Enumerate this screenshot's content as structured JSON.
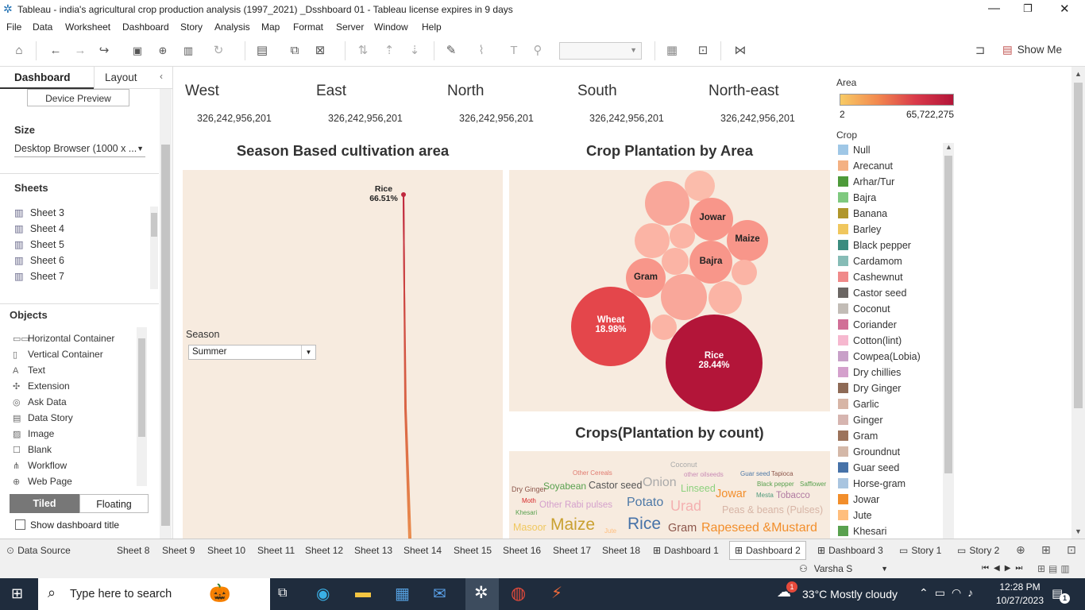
{
  "window": {
    "title": "Tableau - india's agricultural crop production analysis (1997_2021) _Dsshboard 01 - Tableau license expires in 9 days"
  },
  "menu": [
    "File",
    "Data",
    "Worksheet",
    "Dashboard",
    "Story",
    "Analysis",
    "Map",
    "Format",
    "Server",
    "Window",
    "Help"
  ],
  "toolbar": {
    "show_me": "Show Me"
  },
  "left_panel": {
    "tab_dashboard": "Dashboard",
    "tab_layout": "Layout",
    "device_preview": "Device Preview",
    "size_title": "Size",
    "size_value": "Desktop Browser (1000 x ...",
    "sheets_title": "Sheets",
    "sheets": [
      "Sheet 3",
      "Sheet 4",
      "Sheet 5",
      "Sheet 6",
      "Sheet 7"
    ],
    "objects_title": "Objects",
    "objects": [
      "Horizontal Container",
      "Vertical Container",
      "Text",
      "Extension",
      "Ask Data",
      "Data Story",
      "Image",
      "Blank",
      "Workflow",
      "Web Page"
    ],
    "tiled": "Tiled",
    "floating": "Floating",
    "show_title": "Show dashboard title"
  },
  "regions": [
    {
      "name": "West",
      "value": "326,242,956,201"
    },
    {
      "name": "East",
      "value": "326,242,956,201"
    },
    {
      "name": "North",
      "value": "326,242,956,201"
    },
    {
      "name": "South",
      "value": "326,242,956,201"
    },
    {
      "name": "North-east",
      "value": "326,242,956,201"
    }
  ],
  "season_chart": {
    "title": "Season Based cultivation area",
    "filter_label": "Season",
    "filter_value": "Summer",
    "peak_label": "Rice",
    "peak_value": "66.51%"
  },
  "bubble_chart": {
    "title": "Crop Plantation by Area",
    "wheat_label": "Wheat",
    "wheat_value": "18.98%",
    "rice_label": "Rice",
    "rice_value": "28.44%",
    "labels": [
      "Jowar",
      "Maize",
      "Bajra",
      "Gram"
    ]
  },
  "word_cloud": {
    "title": "Crops(Plantation by count)",
    "words": [
      "Other Cereals",
      "Coconut",
      "other oilseeds",
      "Guar seed",
      "Tapioca",
      "Dry Ginger",
      "Soyabean",
      "Castor seed",
      "Onion",
      "Linseed",
      "Black pepper",
      "Safflower",
      "Moth",
      "Other Rabi pulses",
      "Potato",
      "Urad",
      "Jowar",
      "Mesta",
      "Tobacco",
      "Khesari",
      "Peas & beans (Pulses)",
      "Masoor",
      "Maize",
      "Jute",
      "Rice",
      "Gram",
      "Rapeseed &Mustard"
    ]
  },
  "legend": {
    "area_title": "Area",
    "area_min": "2",
    "area_max": "65,722,275",
    "crop_title": "Crop",
    "crops": [
      {
        "name": "Null",
        "color": "#9fc7e6"
      },
      {
        "name": "Arecanut",
        "color": "#f4b183"
      },
      {
        "name": "Arhar/Tur",
        "color": "#4e9a3a"
      },
      {
        "name": "Bajra",
        "color": "#7fc97f"
      },
      {
        "name": "Banana",
        "color": "#b0962b"
      },
      {
        "name": "Barley",
        "color": "#f0c75e"
      },
      {
        "name": "Black pepper",
        "color": "#3b8c7f"
      },
      {
        "name": "Cardamom",
        "color": "#86bcb6"
      },
      {
        "name": "Cashewnut",
        "color": "#f08a8a"
      },
      {
        "name": "Castor seed",
        "color": "#6b6663"
      },
      {
        "name": "Coconut",
        "color": "#c2bcb6"
      },
      {
        "name": "Coriander",
        "color": "#d16f97"
      },
      {
        "name": "Cotton(lint)",
        "color": "#f6b8cf"
      },
      {
        "name": "Cowpea(Lobia)",
        "color": "#c8a0c8"
      },
      {
        "name": "Dry chillies",
        "color": "#d4a0cc"
      },
      {
        "name": "Dry Ginger",
        "color": "#8e6a56"
      },
      {
        "name": "Garlic",
        "color": "#d7b5a6"
      },
      {
        "name": "Ginger",
        "color": "#d6b5b0"
      },
      {
        "name": "Gram",
        "color": "#9c735b"
      },
      {
        "name": "Groundnut",
        "color": "#d4b8a8"
      },
      {
        "name": "Guar seed",
        "color": "#4672a8"
      },
      {
        "name": "Horse-gram",
        "color": "#a9c5e0"
      },
      {
        "name": "Jowar",
        "color": "#f28e2b"
      },
      {
        "name": "Jute",
        "color": "#ffbe7d"
      },
      {
        "name": "Khesari",
        "color": "#59a14f"
      }
    ]
  },
  "tabs": [
    "Data Source",
    "Sheet 8",
    "Sheet 9",
    "Sheet 10",
    "Sheet 11",
    "Sheet 12",
    "Sheet 13",
    "Sheet 14",
    "Sheet 15",
    "Sheet 16",
    "Sheet 17",
    "Sheet 18",
    "Dashboard 1",
    "Dashboard 2",
    "Dashboard 3",
    "Story 1",
    "Story 2"
  ],
  "status": {
    "user": "Varsha S"
  },
  "taskbar": {
    "search_placeholder": "Type here to search",
    "weather": "33°C  Mostly cloudy",
    "time": "12:28 PM",
    "date": "10/27/2023",
    "notif": "1"
  }
}
